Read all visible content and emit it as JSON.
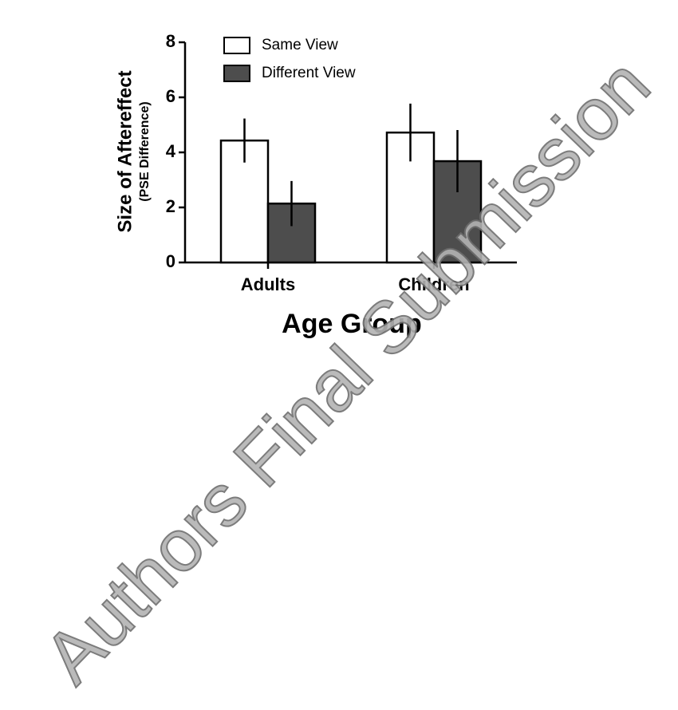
{
  "chart_data": {
    "type": "bar",
    "categories": [
      "Adults",
      "Children"
    ],
    "series": [
      {
        "name": "Same View",
        "color": "#ffffff",
        "values": [
          4.43,
          4.72
        ],
        "errors": [
          0.8,
          1.05
        ]
      },
      {
        "name": "Different View",
        "color": "#4d4d4d",
        "values": [
          2.14,
          3.68
        ],
        "errors": [
          0.82,
          1.13
        ]
      }
    ],
    "ylim": [
      0,
      8
    ],
    "yticks": [
      0,
      2,
      4,
      6,
      8
    ],
    "ylabel": "Size of Aftereffect",
    "ylabel_sub": "(PSE Difference)",
    "xlabel": "Age Group",
    "legend": "top-left",
    "watermark": "Authors Final Submission"
  }
}
